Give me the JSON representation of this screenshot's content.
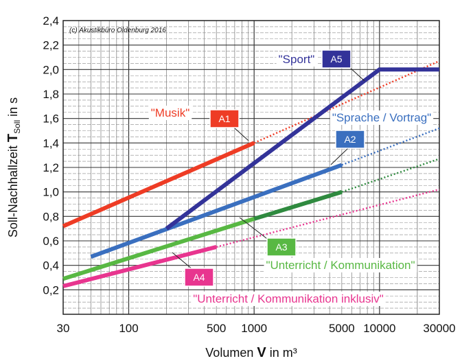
{
  "chart_data": {
    "type": "line",
    "title": "",
    "copyright": "(c) Akustikbüro Oldenburg 2016",
    "xlabel": {
      "prefix": "Volumen ",
      "symbol": "V",
      "suffix": "  in m³"
    },
    "ylabel": {
      "prefix": "Soll-Nachhallzeit ",
      "symbol": "T",
      "sub": "Soll",
      "suffix": "  in s"
    },
    "x_scale": "log",
    "xlim": [
      30,
      30000
    ],
    "ylim": [
      0.0,
      2.4
    ],
    "grid": true,
    "x_ticks": [
      {
        "value": 30,
        "label": "30"
      },
      {
        "value": 100,
        "label": "100"
      },
      {
        "value": 500,
        "label": "500"
      },
      {
        "value": 1000,
        "label": "1000"
      },
      {
        "value": 5000,
        "label": "5000"
      },
      {
        "value": 10000,
        "label": "10000"
      },
      {
        "value": 30000,
        "label": "30000"
      }
    ],
    "y_ticks": [
      {
        "value": 0.2,
        "label": "0,2"
      },
      {
        "value": 0.4,
        "label": "0,4"
      },
      {
        "value": 0.6,
        "label": "0,6"
      },
      {
        "value": 0.8,
        "label": "0,8"
      },
      {
        "value": 1.0,
        "label": "1,0"
      },
      {
        "value": 1.2,
        "label": "1,2"
      },
      {
        "value": 1.4,
        "label": "1,4"
      },
      {
        "value": 1.6,
        "label": "1,6"
      },
      {
        "value": 1.8,
        "label": "1,8"
      },
      {
        "value": 2.0,
        "label": "2,0"
      },
      {
        "value": 2.2,
        "label": "2,2"
      },
      {
        "value": 2.4,
        "label": "2,4"
      }
    ],
    "series": [
      {
        "id": "A1",
        "name": "\"Musik\"",
        "color": "#ee3c25",
        "solid": [
          [
            30,
            0.72
          ],
          [
            1000,
            1.4
          ]
        ],
        "dotted": [
          [
            1000,
            1.4
          ],
          [
            30000,
            2.07
          ]
        ]
      },
      {
        "id": "A2",
        "name": "\"Sprache / Vortrag\"",
        "color": "#3a6fbf",
        "solid": [
          [
            50,
            0.47
          ],
          [
            5000,
            1.22
          ]
        ],
        "dotted": [
          [
            5000,
            1.22
          ],
          [
            30000,
            1.52
          ]
        ]
      },
      {
        "id": "A3",
        "name": "\"Unterricht / Kommunikation\"",
        "color": "#58b843",
        "dark_color": "#2f8a3f",
        "solid": [
          [
            30,
            0.29
          ],
          [
            1000,
            0.78
          ],
          [
            5000,
            1.0
          ]
        ],
        "dotted": [
          [
            5000,
            1.0
          ],
          [
            30000,
            1.27
          ]
        ]
      },
      {
        "id": "A4",
        "name": "\"Unterricht / Kommunikation inklusiv\"",
        "color": "#e8358f",
        "solid": [
          [
            30,
            0.23
          ],
          [
            500,
            0.55
          ]
        ],
        "dotted": [
          [
            500,
            0.55
          ],
          [
            30000,
            1.02
          ]
        ]
      },
      {
        "id": "A5",
        "name": "\"Sport\"",
        "color": "#333399",
        "solid": [
          [
            200,
            0.7
          ],
          [
            10000,
            2.0
          ],
          [
            30000,
            2.0
          ]
        ],
        "dotted": []
      }
    ],
    "annotations": [
      {
        "series": "A1",
        "category": "\"Musik\"",
        "box": "A1",
        "color": "#ee3c25"
      },
      {
        "series": "A2",
        "category": "\"Sprache / Vortrag\"",
        "box": "A2",
        "color": "#3a6fbf"
      },
      {
        "series": "A3",
        "category": "\"Unterricht / Kommunikation\"",
        "box": "A3",
        "color": "#58b843"
      },
      {
        "series": "A4",
        "category": "\"Unterricht / Kommunikation inklusiv\"",
        "box": "A4",
        "color": "#e8358f"
      },
      {
        "series": "A5",
        "category": "\"Sport\"",
        "box": "A5",
        "color": "#333399"
      }
    ]
  }
}
